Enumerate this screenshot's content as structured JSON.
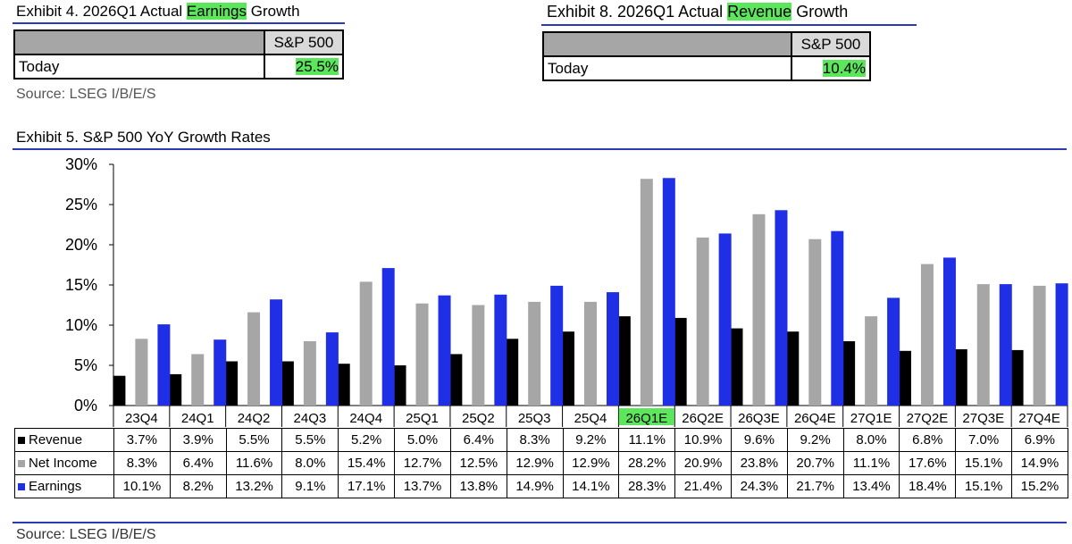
{
  "exhibit4": {
    "title_pre": "Exhibit 4.  2026Q1 Actual ",
    "title_hl": "Earnings",
    "title_post": " Growth",
    "col_header": "S&P 500",
    "row_label": "Today",
    "value": "25.5%"
  },
  "exhibit8": {
    "title_pre": "Exhibit 8.  2026Q1 Actual ",
    "title_hl": "Revenue",
    "title_post": " Growth",
    "col_header": "S&P 500",
    "row_label": "Today",
    "value": "10.4%"
  },
  "source_top": "Source: LSEG I/B/E/S",
  "source_bottom": "Source: LSEG I/B/E/S",
  "colors": {
    "revenue": "#000000",
    "net_income": "#a6a6a6",
    "earnings": "#1f2fe6",
    "highlight": "#5ce65c",
    "rule": "#2a3bb0"
  },
  "chart_data": {
    "type": "bar",
    "title": "Exhibit 5.  S&P 500 YoY Growth Rates",
    "categories": [
      "23Q4",
      "24Q1",
      "24Q2",
      "24Q3",
      "24Q4",
      "25Q1",
      "25Q2",
      "25Q3",
      "25Q4",
      "26Q1E",
      "26Q2E",
      "26Q3E",
      "26Q4E",
      "27Q1E",
      "27Q2E",
      "27Q3E",
      "27Q4E"
    ],
    "highlighted_category": "26Q1E",
    "ylim": [
      0,
      30
    ],
    "yticks": [
      {
        "value": 0,
        "label": "0%"
      },
      {
        "value": 5,
        "label": "5%"
      },
      {
        "value": 10,
        "label": "10%"
      },
      {
        "value": 15,
        "label": "15%"
      },
      {
        "value": 20,
        "label": "20%"
      },
      {
        "value": 25,
        "label": "25%"
      },
      {
        "value": 30,
        "label": "30%"
      }
    ],
    "grid": false,
    "legend": "data-table",
    "series": [
      {
        "name": "Revenue",
        "color": "#000000",
        "values": [
          3.7,
          3.9,
          5.5,
          5.5,
          5.2,
          5.0,
          6.4,
          8.3,
          9.2,
          11.1,
          10.9,
          9.6,
          9.2,
          8.0,
          6.8,
          7.0,
          6.9
        ],
        "labels": [
          "3.7%",
          "3.9%",
          "5.5%",
          "5.5%",
          "5.2%",
          "5.0%",
          "6.4%",
          "8.3%",
          "9.2%",
          "11.1%",
          "10.9%",
          "9.6%",
          "9.2%",
          "8.0%",
          "6.8%",
          "7.0%",
          "6.9%"
        ]
      },
      {
        "name": "Net Income",
        "color": "#a6a6a6",
        "values": [
          8.3,
          6.4,
          11.6,
          8.0,
          15.4,
          12.7,
          12.5,
          12.9,
          12.9,
          28.2,
          20.9,
          23.8,
          20.7,
          11.1,
          17.6,
          15.1,
          14.9
        ],
        "labels": [
          "8.3%",
          "6.4%",
          "11.6%",
          "8.0%",
          "15.4%",
          "12.7%",
          "12.5%",
          "12.9%",
          "12.9%",
          "28.2%",
          "20.9%",
          "23.8%",
          "20.7%",
          "11.1%",
          "17.6%",
          "15.1%",
          "14.9%"
        ]
      },
      {
        "name": "Earnings",
        "color": "#1f2fe6",
        "values": [
          10.1,
          8.2,
          13.2,
          9.1,
          17.1,
          13.7,
          13.8,
          14.9,
          14.1,
          28.3,
          21.4,
          24.3,
          21.7,
          13.4,
          18.4,
          15.1,
          15.2
        ],
        "labels": [
          "10.1%",
          "8.2%",
          "13.2%",
          "9.1%",
          "17.1%",
          "13.7%",
          "13.8%",
          "14.9%",
          "14.1%",
          "28.3%",
          "21.4%",
          "24.3%",
          "21.7%",
          "13.4%",
          "18.4%",
          "15.1%",
          "15.2%"
        ]
      }
    ]
  }
}
